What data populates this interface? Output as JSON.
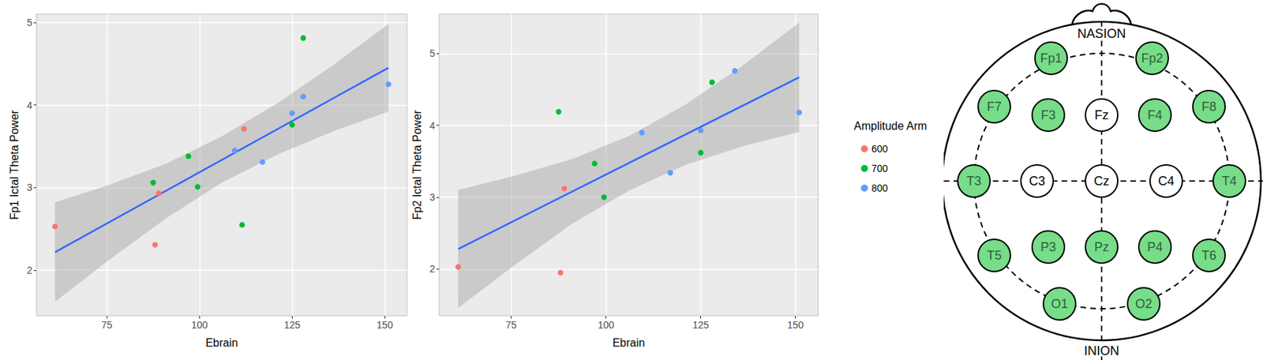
{
  "chart_data": [
    {
      "type": "scatter",
      "x_label": "Ebrain",
      "y_label": "Fp1 Ictal Theta Power",
      "xlim": [
        56,
        156
      ],
      "xticks": [
        75,
        100,
        125,
        150
      ],
      "ylim": [
        1.45,
        5.1
      ],
      "yticks": [
        2,
        3,
        4,
        5
      ],
      "grid": true,
      "legend": "right",
      "series": [
        {
          "name": "600",
          "color": "#F8766D",
          "x": [
            61,
            88,
            89,
            112
          ],
          "values": [
            2.53,
            2.31,
            2.93,
            3.71
          ]
        },
        {
          "name": "700",
          "color": "#00BA38",
          "x": [
            87.5,
            97,
            99.5,
            111.5,
            125,
            128
          ],
          "values": [
            3.06,
            3.38,
            3.01,
            2.55,
            3.76,
            4.81
          ]
        },
        {
          "name": "800",
          "color": "#619CFF",
          "x": [
            109.5,
            117,
            125,
            128,
            151
          ],
          "values": [
            3.45,
            3.31,
            3.9,
            4.1,
            4.25
          ]
        }
      ],
      "fit": {
        "color": "#3366FF",
        "x": [
          61,
          151
        ],
        "values": [
          2.22,
          4.45
        ]
      },
      "band": {
        "color": "#999999",
        "x": [
          61,
          76,
          91,
          106,
          121,
          136,
          151
        ],
        "lower": [
          1.62,
          2.14,
          2.63,
          3.06,
          3.4,
          3.68,
          3.92
        ],
        "upper": [
          2.82,
          3.04,
          3.29,
          3.62,
          4.02,
          4.48,
          4.98
        ]
      }
    },
    {
      "type": "scatter",
      "x_label": "Ebrain",
      "y_label": "Fp2 Ictal Theta Power",
      "xlim": [
        56,
        156
      ],
      "xticks": [
        75,
        100,
        125,
        150
      ],
      "ylim": [
        1.35,
        5.55
      ],
      "yticks": [
        2,
        3,
        4,
        5
      ],
      "grid": true,
      "legend": "right",
      "series": [
        {
          "name": "600",
          "color": "#F8766D",
          "x": [
            61,
            88,
            89
          ],
          "values": [
            2.03,
            1.95,
            3.12
          ]
        },
        {
          "name": "700",
          "color": "#00BA38",
          "x": [
            87.5,
            97,
            99.5,
            125,
            128
          ],
          "values": [
            4.19,
            3.47,
            3.0,
            3.62,
            4.6
          ]
        },
        {
          "name": "800",
          "color": "#619CFF",
          "x": [
            109.5,
            117,
            125,
            134,
            151
          ],
          "values": [
            3.9,
            3.34,
            3.93,
            4.76,
            4.18
          ]
        }
      ],
      "fit": {
        "color": "#3366FF",
        "x": [
          61,
          151
        ],
        "values": [
          2.28,
          4.67
        ]
      },
      "band": {
        "color": "#999999",
        "x": [
          61,
          76,
          91,
          106,
          121,
          136,
          151
        ],
        "lower": [
          1.46,
          2.06,
          2.63,
          3.09,
          3.45,
          3.71,
          3.91
        ],
        "upper": [
          3.1,
          3.3,
          3.53,
          3.85,
          4.29,
          4.83,
          5.43
        ]
      }
    }
  ],
  "legend_title": "Amplitude Arm",
  "diagram": {
    "top_label": "NASION",
    "bottom_label": "INION",
    "highlight_color": "#77DD88",
    "rows": [
      [
        {
          "label": "Fp1",
          "highlighted": true
        },
        {
          "label": "Fp2",
          "highlighted": true
        }
      ],
      [
        {
          "label": "F7",
          "highlighted": true
        },
        {
          "label": "F3",
          "highlighted": true
        },
        {
          "label": "Fz",
          "highlighted": false
        },
        {
          "label": "F4",
          "highlighted": true
        },
        {
          "label": "F8",
          "highlighted": true
        }
      ],
      [
        {
          "label": "T3",
          "highlighted": true
        },
        {
          "label": "C3",
          "highlighted": false
        },
        {
          "label": "Cz",
          "highlighted": false
        },
        {
          "label": "C4",
          "highlighted": false
        },
        {
          "label": "T4",
          "highlighted": true
        }
      ],
      [
        {
          "label": "T5",
          "highlighted": true
        },
        {
          "label": "P3",
          "highlighted": true
        },
        {
          "label": "Pz",
          "highlighted": true
        },
        {
          "label": "P4",
          "highlighted": true
        },
        {
          "label": "T6",
          "highlighted": true
        }
      ],
      [
        {
          "label": "O1",
          "highlighted": true
        },
        {
          "label": "O2",
          "highlighted": true
        }
      ]
    ]
  }
}
